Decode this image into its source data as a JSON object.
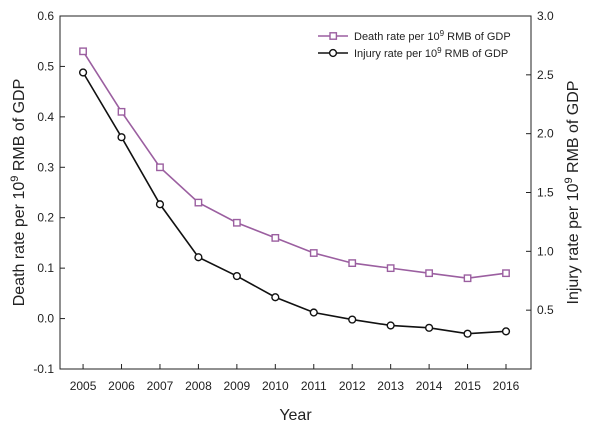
{
  "chart_data": {
    "type": "line",
    "x": [
      2005,
      2006,
      2007,
      2008,
      2009,
      2010,
      2011,
      2012,
      2013,
      2014,
      2015,
      2016
    ],
    "xlabel": "Year",
    "ylabel_left": {
      "prefix": "Death rate per 10",
      "sup": "9",
      "suffix": " RMB of GDP"
    },
    "ylabel_right": {
      "prefix": "Injury rate per 10",
      "sup": "9",
      "suffix": " RMB of GDP"
    },
    "ylim_left": [
      -0.1,
      0.6
    ],
    "ylim_right": [
      0.0,
      3.0
    ],
    "yticks_left": [
      "-0.1",
      "0.0",
      "0.1",
      "0.2",
      "0.3",
      "0.4",
      "0.5",
      "0.6"
    ],
    "yticks_right": [
      "0.5",
      "1.0",
      "1.5",
      "2.0",
      "2.5",
      "3.0"
    ],
    "legend_position": "top-right",
    "series": [
      {
        "name": {
          "prefix": "Death rate per 10",
          "sup": "9",
          "suffix": " RMB of GDP"
        },
        "axis": "left",
        "marker": "square",
        "color": "#9b5fa0",
        "values": [
          0.53,
          0.41,
          0.3,
          0.23,
          0.19,
          0.16,
          0.13,
          0.11,
          0.1,
          0.09,
          0.08,
          0.09
        ]
      },
      {
        "name": {
          "prefix": "Injury rate per 10",
          "sup": "9",
          "suffix": " RMB of GDP"
        },
        "axis": "right",
        "marker": "circle",
        "color": "#111111",
        "values": [
          2.52,
          1.97,
          1.4,
          0.95,
          0.79,
          0.61,
          0.48,
          0.42,
          0.37,
          0.35,
          0.3,
          0.32
        ]
      }
    ]
  }
}
